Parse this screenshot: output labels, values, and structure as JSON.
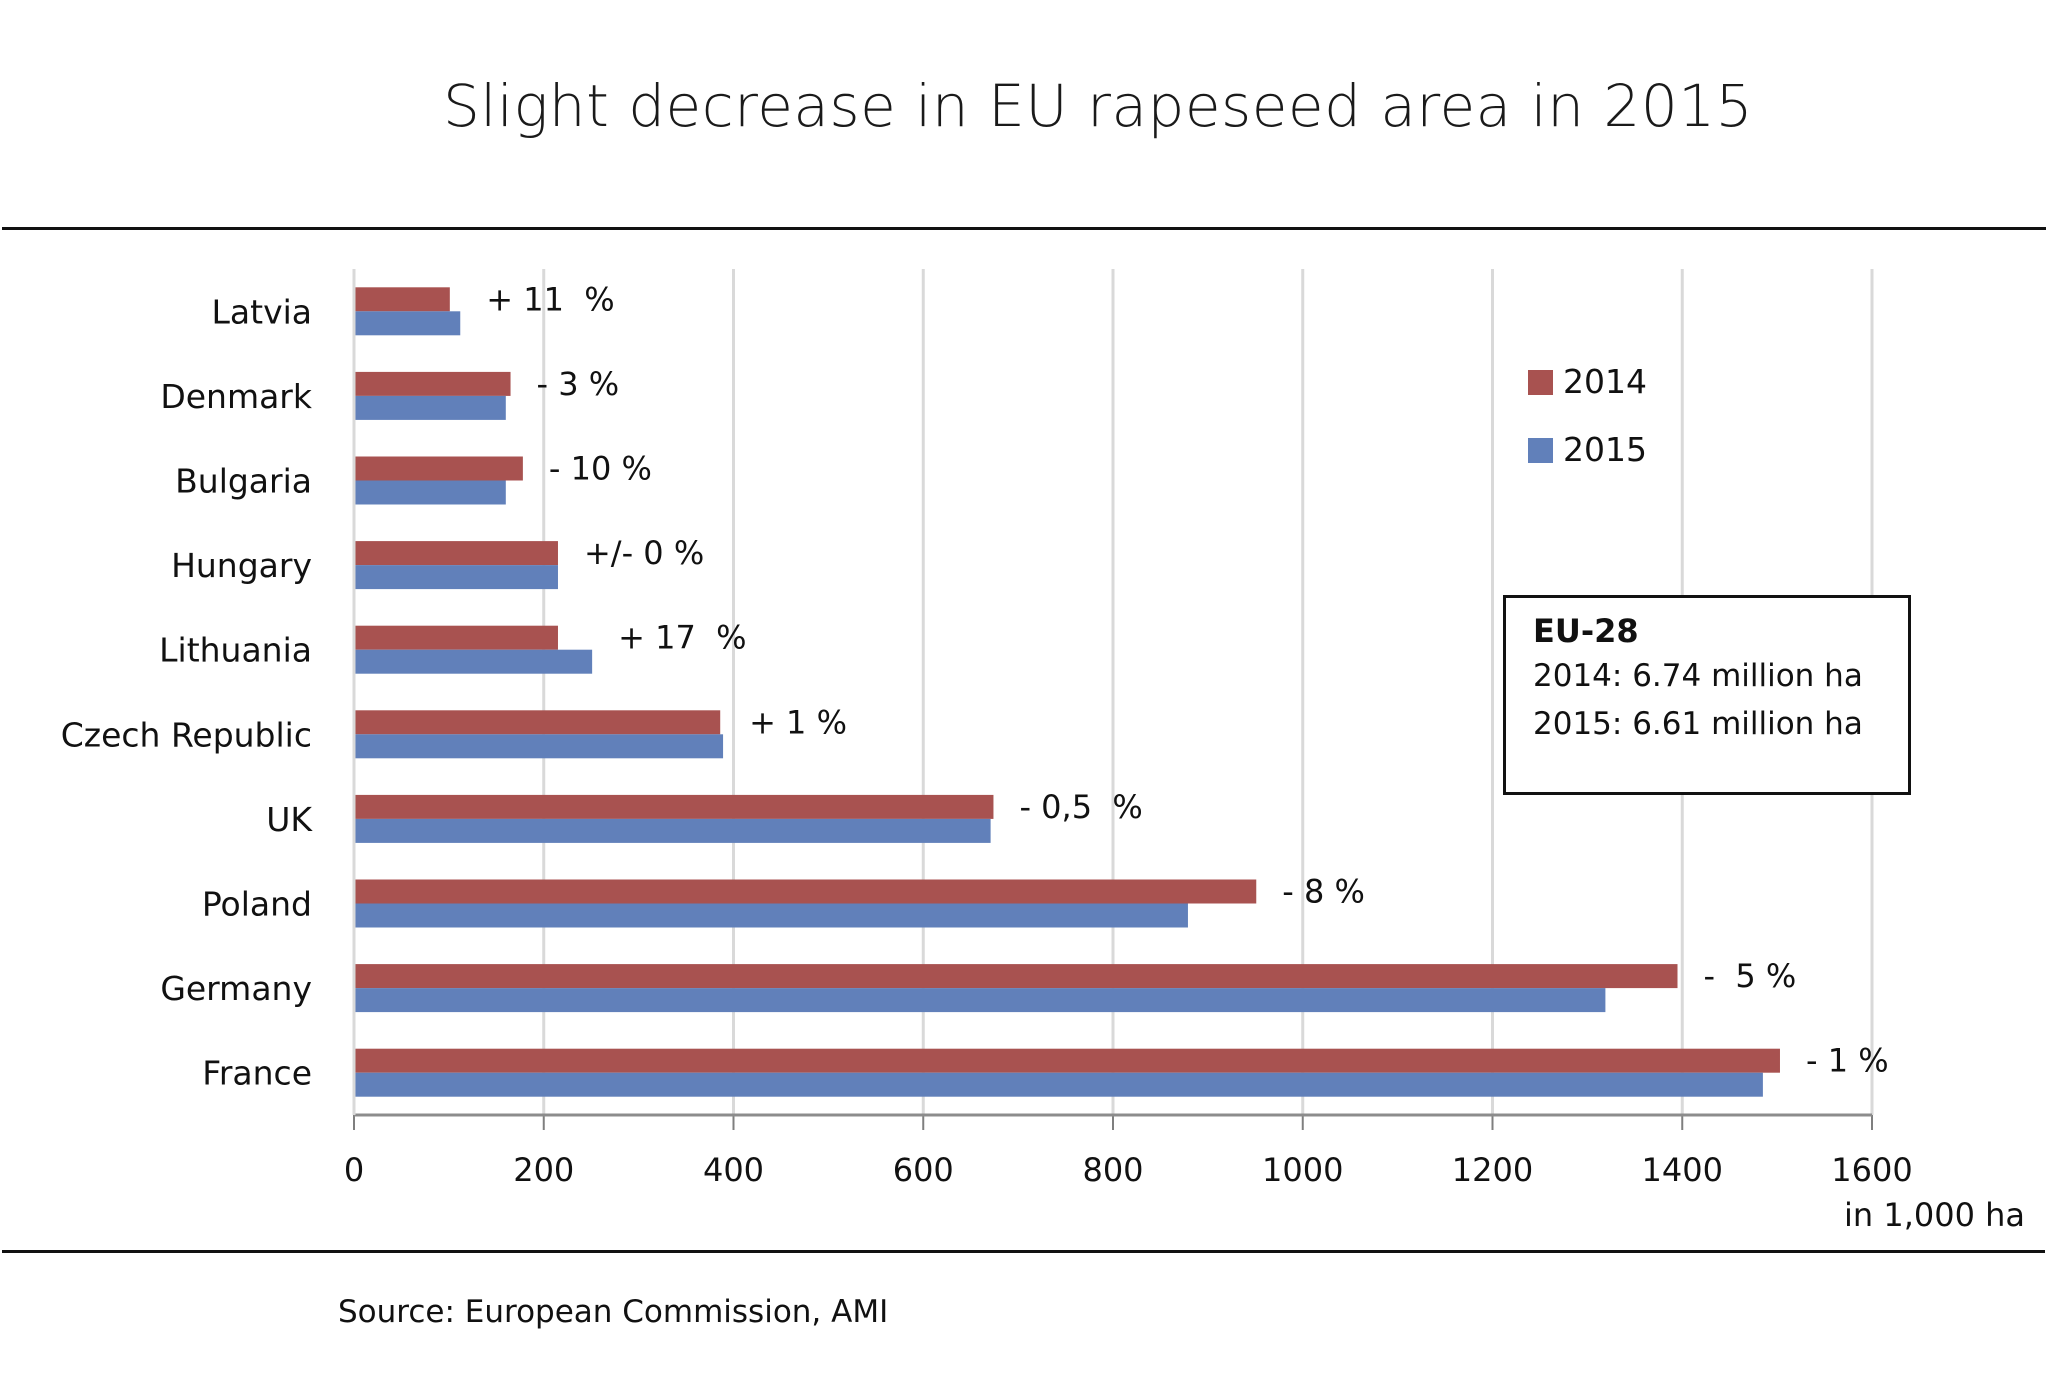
{
  "chart_data": {
    "type": "bar",
    "orientation": "horizontal",
    "title": "Slight decrease in EU rapeseed area in 2015",
    "xlabel": "in 1,000  ha",
    "ylabel": "",
    "xlim": [
      0,
      1600
    ],
    "x_ticks": [
      0,
      200,
      400,
      600,
      800,
      1000,
      1200,
      1400,
      1600
    ],
    "grid": true,
    "legend_position": "top-right",
    "categories": [
      "Latvia",
      "Denmark",
      "Bulgaria",
      "Hungary",
      "Lithuania",
      "Czech Republic",
      "UK",
      "Poland",
      "Germany",
      "France"
    ],
    "series": [
      {
        "name": "2014",
        "color": "#A85250",
        "values": [
          101,
          165,
          178,
          215,
          215,
          386,
          674,
          951,
          1395,
          1503
        ]
      },
      {
        "name": "2015",
        "color": "#6180BA",
        "values": [
          112,
          160,
          160,
          215,
          251,
          389,
          671,
          879,
          1319,
          1485
        ]
      }
    ],
    "annotations": [
      "+ 11  %",
      "- 3 %",
      "- 10 %",
      "+/- 0 %",
      "+ 17  %",
      "+ 1 %",
      "- 0,5  %",
      "- 8 %",
      "-  5 %",
      "- 1 %"
    ],
    "info_box": {
      "heading": "EU-28",
      "lines": [
        "2014: 6.74 million ha",
        "2015: 6.61 million ha"
      ]
    },
    "source": "Source: European Commission, AMI"
  }
}
